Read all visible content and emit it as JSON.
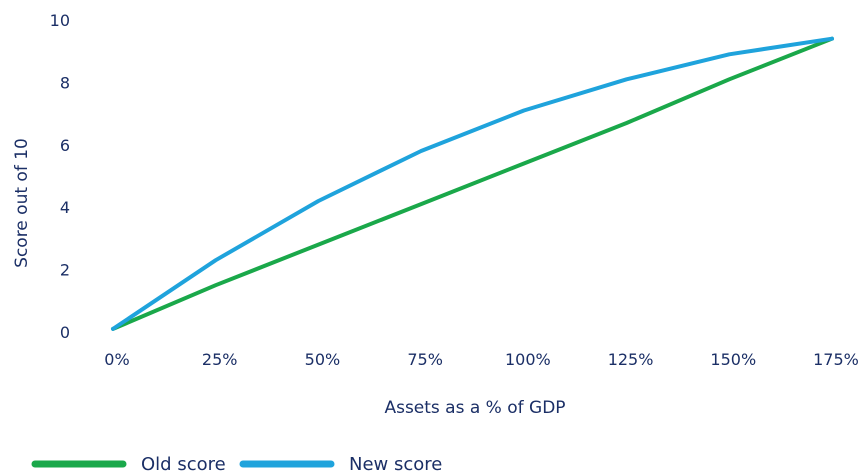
{
  "chart_data": {
    "type": "line",
    "title": "",
    "xlabel": "Assets as a % of GDP",
    "ylabel": "Score out of 10",
    "x": [
      0,
      25,
      50,
      75,
      100,
      125,
      150,
      175
    ],
    "x_tick_labels": [
      "0%",
      "25%",
      "50%",
      "75%",
      "100%",
      "125%",
      "150%",
      "175%"
    ],
    "y_ticks": [
      0,
      2,
      4,
      6,
      8,
      10
    ],
    "xlim": [
      0,
      175
    ],
    "ylim": [
      0,
      10
    ],
    "grid": false,
    "legend_position": "bottom-left",
    "series": [
      {
        "name": "Old score",
        "color": "#1aa84a",
        "values": [
          0.1,
          1.5,
          2.8,
          4.1,
          5.4,
          6.7,
          8.1,
          9.4
        ]
      },
      {
        "name": "New score",
        "color": "#1fa3dc",
        "values": [
          0.1,
          2.3,
          4.2,
          5.8,
          7.1,
          8.1,
          8.9,
          9.4
        ]
      }
    ]
  }
}
